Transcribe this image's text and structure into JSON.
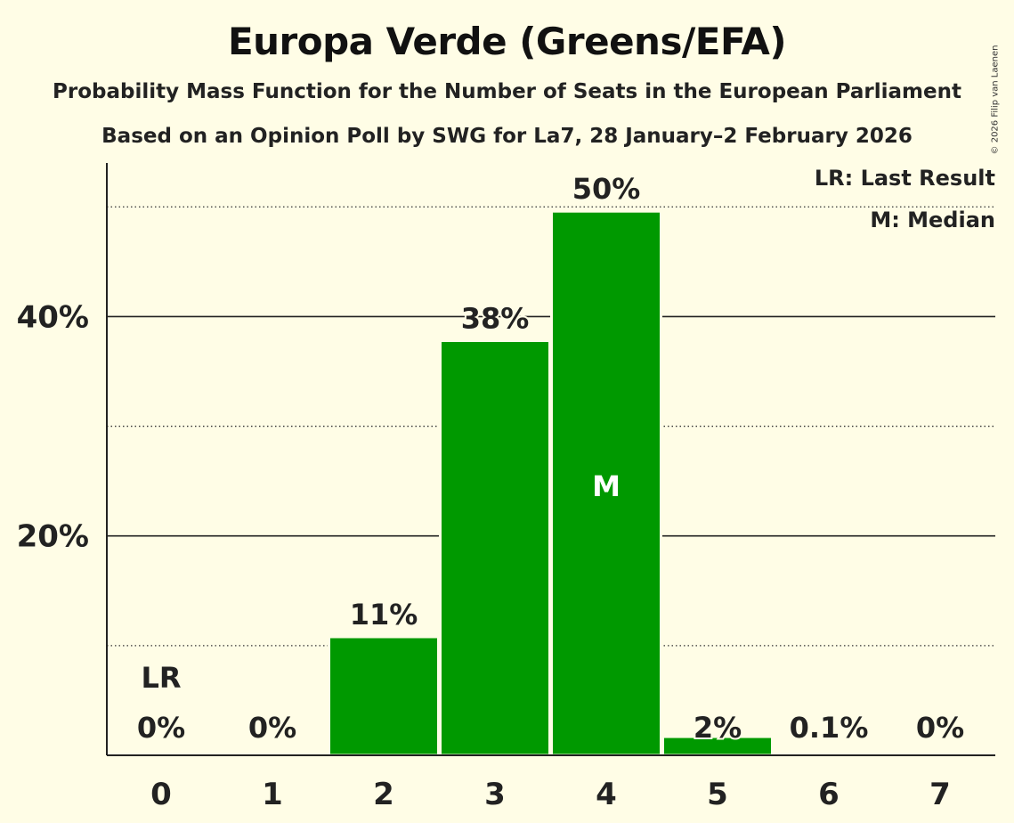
{
  "chart_data": {
    "type": "bar",
    "title": "Europa Verde (Greens/EFA)",
    "subtitle": "Probability Mass Function for the Number of Seats in the European Parliament",
    "subtitle2": "Based on an Opinion Poll by SWG for La7, 28 January–2 February 2026",
    "copyright": "© 2026 Filip van Laenen",
    "categories": [
      "0",
      "1",
      "2",
      "3",
      "4",
      "5",
      "6",
      "7"
    ],
    "values": [
      0,
      0,
      10.8,
      37.8,
      49.6,
      1.7,
      0.1,
      0
    ],
    "labels": [
      "0%",
      "0%",
      "11%",
      "38%",
      "50%",
      "2%",
      "0.1%",
      "0%"
    ],
    "ylim": [
      0,
      54
    ],
    "yticks": [
      {
        "value": 20,
        "label": "20%"
      },
      {
        "value": 40,
        "label": "40%"
      }
    ],
    "minor_gridlines": [
      10,
      30,
      50
    ],
    "last_result_index": 0,
    "last_result_marker": "LR",
    "median_index": 4,
    "median_marker": "M",
    "legend": [
      "LR: Last Result",
      "M: Median"
    ],
    "bar_color": "#009900",
    "background_color": "#fffde6"
  }
}
